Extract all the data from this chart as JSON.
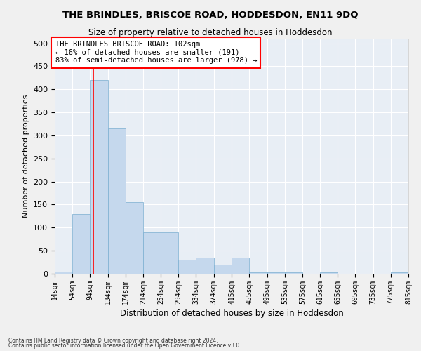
{
  "title": "THE BRINDLES, BRISCOE ROAD, HODDESDON, EN11 9DQ",
  "subtitle": "Size of property relative to detached houses in Hoddesdon",
  "xlabel": "Distribution of detached houses by size in Hoddesdon",
  "ylabel": "Number of detached properties",
  "footnote1": "Contains HM Land Registry data © Crown copyright and database right 2024.",
  "footnote2": "Contains public sector information licensed under the Open Government Licence v3.0.",
  "bar_color": "#c5d8ed",
  "bar_edge_color": "#7aaed0",
  "background_color": "#e8eef5",
  "grid_color": "#ffffff",
  "red_line_x": 102,
  "annotation_title": "THE BRINDLES BRISCOE ROAD: 102sqm",
  "annotation_line1": "← 16% of detached houses are smaller (191)",
  "annotation_line2": "83% of semi-detached houses are larger (978) →",
  "bins": [
    14,
    54,
    94,
    134,
    174,
    214,
    254,
    294,
    334,
    374,
    415,
    455,
    495,
    535,
    575,
    615,
    655,
    695,
    735,
    775,
    815
  ],
  "bin_labels": [
    "14sqm",
    "54sqm",
    "94sqm",
    "134sqm",
    "174sqm",
    "214sqm",
    "254sqm",
    "294sqm",
    "334sqm",
    "374sqm",
    "415sqm",
    "455sqm",
    "495sqm",
    "535sqm",
    "575sqm",
    "615sqm",
    "655sqm",
    "695sqm",
    "735sqm",
    "775sqm",
    "815sqm"
  ],
  "counts": [
    5,
    130,
    420,
    315,
    155,
    90,
    90,
    30,
    35,
    20,
    35,
    3,
    3,
    3,
    0,
    3,
    0,
    0,
    0,
    3,
    0
  ],
  "ylim": [
    0,
    510
  ],
  "yticks": [
    0,
    50,
    100,
    150,
    200,
    250,
    300,
    350,
    400,
    450,
    500
  ]
}
